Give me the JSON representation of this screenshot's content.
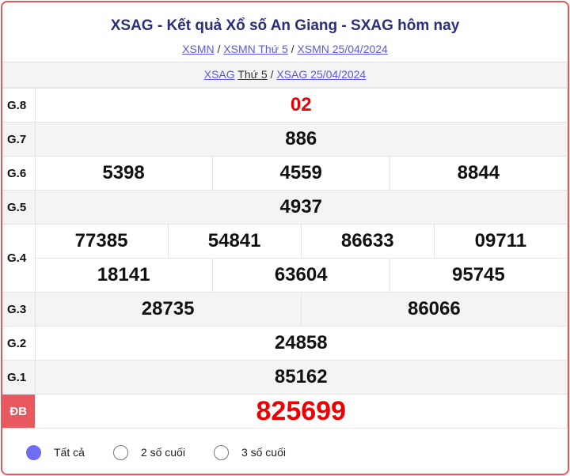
{
  "header": {
    "title": "XSAG - Kết quả Xổ số An Giang - SXAG hôm nay",
    "crumbs": [
      "XSMN",
      "XSMN Thứ 5",
      "XSMN 25/04/2024"
    ]
  },
  "sub": {
    "link1": "XSAG",
    "day": "Thứ 5",
    "link2": "XSAG 25/04/2024"
  },
  "prizes": {
    "g8": {
      "label": "G.8",
      "nums": [
        "02"
      ]
    },
    "g7": {
      "label": "G.7",
      "nums": [
        "886"
      ]
    },
    "g6": {
      "label": "G.6",
      "nums": [
        "5398",
        "4559",
        "8844"
      ]
    },
    "g5": {
      "label": "G.5",
      "nums": [
        "4937"
      ]
    },
    "g4": {
      "label": "G.4",
      "nums": [
        "77385",
        "54841",
        "86633",
        "09711",
        "18141",
        "63604",
        "95745"
      ]
    },
    "g3": {
      "label": "G.3",
      "nums": [
        "28735",
        "86066"
      ]
    },
    "g2": {
      "label": "G.2",
      "nums": [
        "24858"
      ]
    },
    "g1": {
      "label": "G.1",
      "nums": [
        "85162"
      ]
    },
    "db": {
      "label": "ĐB",
      "nums": [
        "825699"
      ]
    }
  },
  "options": [
    {
      "label": "Tất cả",
      "selected": true
    },
    {
      "label": "2 số cuối",
      "selected": false
    },
    {
      "label": "3 số cuối",
      "selected": false
    }
  ],
  "colors": {
    "accent": "#e8595f",
    "title": "#2b2f7a",
    "special": "#ee0000",
    "link": "#5b5bd6"
  }
}
